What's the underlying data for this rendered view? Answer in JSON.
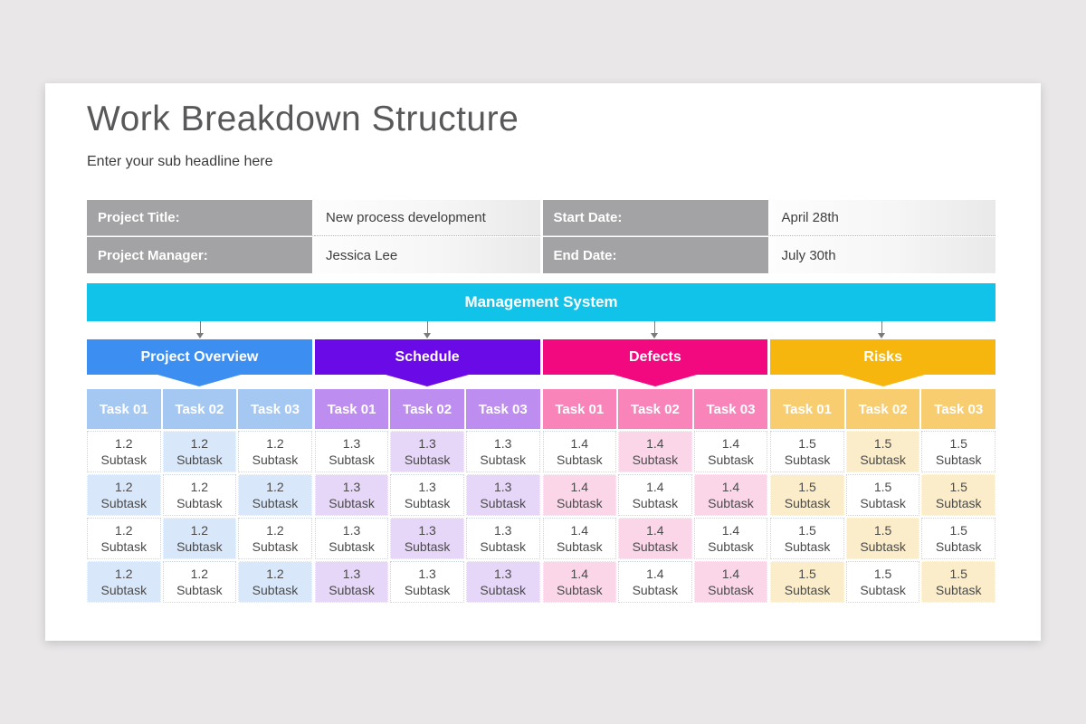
{
  "slide": {
    "title": "Work Breakdown Structure",
    "subtitle": "Enter your sub headline here",
    "background_color": "#e9e7e8",
    "card_color": "#ffffff"
  },
  "project_info": {
    "label_bg_color": "#a3a3a5",
    "left_rows": [
      {
        "label": "Project Title:",
        "value": "New process development"
      },
      {
        "label": "Project Manager:",
        "value": "Jessica Lee"
      }
    ],
    "right_rows": [
      {
        "label": "Start Date:",
        "value": "April 28th"
      },
      {
        "label": "End Date:",
        "value": "July 30th"
      }
    ]
  },
  "banner": {
    "label": "Management System",
    "color": "#12c3e9"
  },
  "arrow_color": "#7a7a7a",
  "categories": [
    {
      "name": "Project Overview",
      "header_color": "#3d8ef1",
      "task_header_color": "#a5c8f3",
      "tint_color": "#d8e7fa",
      "task_headers": [
        "Task 01",
        "Task 02",
        "Task 03"
      ],
      "subtask_code": "1.2",
      "subtask_label": "Subtask",
      "subtask_rows": 4
    },
    {
      "name": "Schedule",
      "header_color": "#6a0ae6",
      "task_header_color": "#bd8df0",
      "tint_color": "#e6d6f8",
      "task_headers": [
        "Task 01",
        "Task 02",
        "Task 03"
      ],
      "subtask_code": "1.3",
      "subtask_label": "Subtask",
      "subtask_rows": 4
    },
    {
      "name": "Defects",
      "header_color": "#f3097f",
      "task_header_color": "#f884ba",
      "tint_color": "#fbd6e9",
      "task_headers": [
        "Task 01",
        "Task 02",
        "Task 03"
      ],
      "subtask_code": "1.4",
      "subtask_label": "Subtask",
      "subtask_rows": 4
    },
    {
      "name": "Risks",
      "header_color": "#f6b60d",
      "task_header_color": "#f8cd6f",
      "tint_color": "#fcedca",
      "task_headers": [
        "Task 01",
        "Task 02",
        "Task 03"
      ],
      "subtask_code": "1.5",
      "subtask_label": "Subtask",
      "subtask_rows": 4
    }
  ]
}
